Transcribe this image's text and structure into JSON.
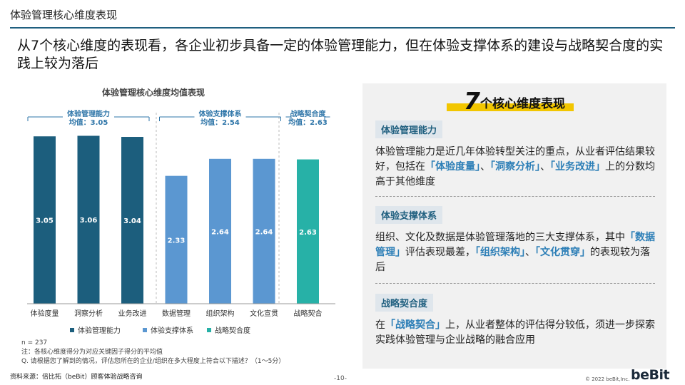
{
  "page": {
    "title": "体验管理核心维度表现",
    "headline": "从7个核心维度的表现看，各企业初步具备一定的体验管理能力，但在体验支撑体系的建设与战略契合度的实践上较为落后"
  },
  "chart_data": {
    "type": "bar",
    "title": "体验管理核心维度均值表现",
    "categories": [
      "体验度量",
      "洞察分析",
      "业务改进",
      "数据管理",
      "组织架构",
      "文化宣贯",
      "战略契合"
    ],
    "values": [
      3.05,
      3.06,
      3.04,
      2.33,
      2.64,
      2.64,
      2.63
    ],
    "series": [
      {
        "name": "体验管理能力",
        "color": "#1c5e7d",
        "indices": [
          0,
          1,
          2
        ]
      },
      {
        "name": "体验支撑体系",
        "color": "#5b97d1",
        "indices": [
          3,
          4,
          5
        ]
      },
      {
        "name": "战略契合度",
        "color": "#27b1a7",
        "indices": [
          6
        ]
      }
    ],
    "groups": [
      {
        "name": "体验管理能力",
        "mean_label": "均值：3.05",
        "start": 0,
        "end": 2
      },
      {
        "name": "体验支撑体系",
        "mean_label": "均值：2.54",
        "start": 3,
        "end": 5
      },
      {
        "name": "战略契合度",
        "mean_label": "均值：2.63",
        "start": 6,
        "end": 6
      }
    ],
    "ylim": [
      0,
      3.3
    ],
    "legend_position": "bottom",
    "grid": false
  },
  "notes": {
    "n": "n = 237",
    "note": "注：各核心维度得分为对应关键因子得分的平均值",
    "question": "Q. 请根据您了解到的情况，评估您所在的企业/组织在多大程度上符合以下描述？（1～5分）"
  },
  "footer": {
    "source": "资料来源：倍比拓（beBit）顾客体验战略咨询",
    "page_number": "-10-",
    "copyright": "© 2022 beBit,Inc.",
    "logo": "beBit"
  },
  "panel": {
    "title_num": "7",
    "title_text": "个核心维度表现",
    "sections": [
      {
        "label": "体验管理能力",
        "parts": [
          {
            "t": "体验管理能力是近几年体验转型关注的重点，从业者评估结果较好，包括在"
          },
          {
            "t": "「体验度量」",
            "h": true
          },
          {
            "t": "、"
          },
          {
            "t": "「洞察分析」",
            "h": true
          },
          {
            "t": "、"
          },
          {
            "t": "「业务改进」",
            "h": true
          },
          {
            "t": "上的分数均高于其他维度"
          }
        ]
      },
      {
        "label": "体验支撑体系",
        "parts": [
          {
            "t": "组织、文化及数据是体验管理落地的三大支撑体系，其中"
          },
          {
            "t": "「数据管理」",
            "h": true
          },
          {
            "t": "评估表现最差，"
          },
          {
            "t": "「组织架构」",
            "h": true
          },
          {
            "t": "、"
          },
          {
            "t": "「文化贯穿」",
            "h": true
          },
          {
            "t": "的表现较为落后"
          }
        ]
      },
      {
        "label": "战略契合度",
        "parts": [
          {
            "t": "在"
          },
          {
            "t": "「战略契合」",
            "h": true
          },
          {
            "t": "上，从业者整体的评估得分较低，须进一步探索实践体验管理与企业战略的融合应用"
          }
        ]
      }
    ]
  }
}
